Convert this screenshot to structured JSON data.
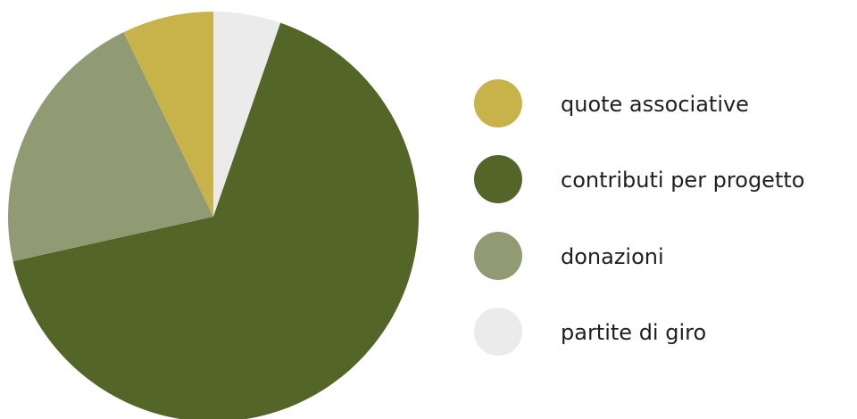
{
  "chart_data": {
    "type": "pie",
    "title": "",
    "start_angle_deg": 0,
    "direction": "clockwise",
    "slices": [
      {
        "label": "partite di giro",
        "value": 5.3,
        "color": "#ebebeb"
      },
      {
        "label": "contributi per progetto",
        "value": 66.2,
        "color": "#536628"
      },
      {
        "label": "donazioni",
        "value": 21.3,
        "color": "#909b74"
      },
      {
        "label": "quote associative",
        "value": 7.2,
        "color": "#c8b34a"
      }
    ],
    "legend": {
      "placement": "right",
      "order": [
        "quote associative",
        "contributi per progetto",
        "donazioni",
        "partite di giro"
      ]
    }
  }
}
